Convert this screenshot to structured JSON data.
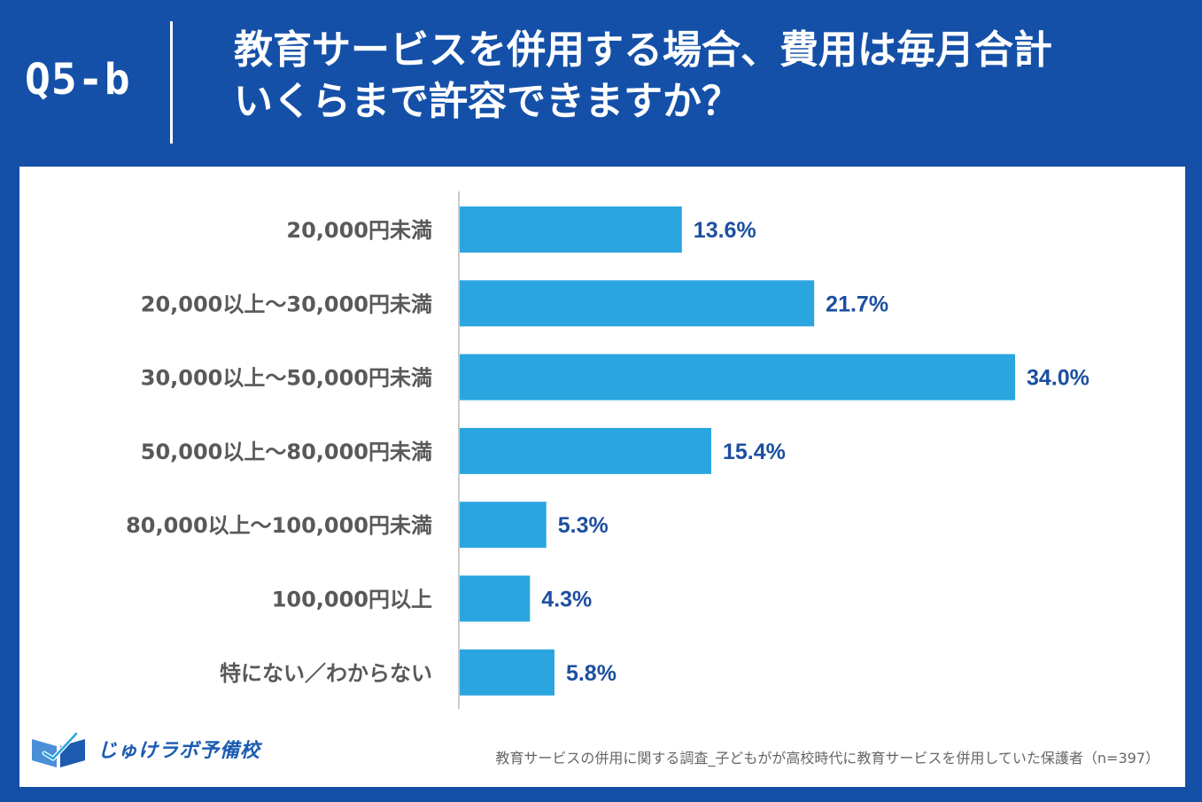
{
  "header": {
    "question_label": "Q5-b",
    "title_line1": "教育サービスを併用する場合、費用は毎月合計",
    "title_line2": "いくらまで許容できますか？"
  },
  "colors": {
    "frame": "#1550a8",
    "bar": "#2aa5e0",
    "value_label": "#1c4fa0",
    "category_label": "#595959",
    "axis": "#cccccc"
  },
  "chart_data": {
    "type": "bar",
    "orientation": "horizontal",
    "categories": [
      "20,000円未満",
      "20,000以上～30,000円未満",
      "30,000以上～50,000円未満",
      "50,000以上～80,000円未満",
      "80,000以上～100,000円未満",
      "100,000円以上",
      "特にない／わからない"
    ],
    "values": [
      13.6,
      21.7,
      34.0,
      15.4,
      5.3,
      4.3,
      5.8
    ],
    "value_labels": [
      "13.6%",
      "21.7%",
      "34.0%",
      "15.4%",
      "5.3%",
      "4.3%",
      "5.8%"
    ],
    "unit": "%",
    "xlim": [
      0,
      34.0
    ],
    "grid": false,
    "legend": "none"
  },
  "footer": {
    "logo_text": "じゅけラボ予備校",
    "source": "教育サービスの併用に関する調査_子どもがが高校時代に教育サービスを併用していた保護者（n=397）"
  }
}
